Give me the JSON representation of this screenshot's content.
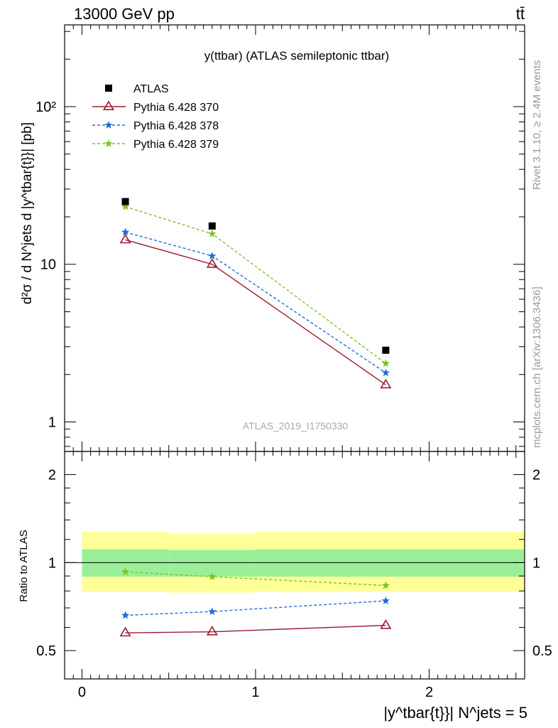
{
  "header": {
    "left": "13000 GeV pp",
    "right": "tt̄"
  },
  "side_text": {
    "rivet": "Rivet 3.1.10, ≥ 2.4M events",
    "mcplots": "mcplots.cern.ch [arXiv:1306.3436]"
  },
  "watermark": "ATLAS_2019_I1750330",
  "chart_data": {
    "type": "scatter",
    "title": "y(ttbar) (ATLAS semileptonic ttbar)",
    "ylabel_main": "d²σ / d N^jets d |y^tbar{t}}| [pb]",
    "ylabel_ratio": "Ratio to ATLAS",
    "xlabel": "|y^tbar{t}}| N^jets = 5",
    "xlim": [
      -0.1,
      2.55
    ],
    "ylim_main": [
      0.65,
      330
    ],
    "ylim_ratio": [
      0.4,
      2.4
    ],
    "y_scale_main": "log",
    "y_scale_ratio": "log",
    "x_ticks": [
      "0",
      "1",
      "2"
    ],
    "y_ticks_main": [
      "1",
      "10",
      "10²"
    ],
    "y_ticks_ratio": [
      "0.5",
      "1",
      "2"
    ],
    "x": [
      0.25,
      0.75,
      1.75
    ],
    "bins": [
      [
        -0.1,
        0.5
      ],
      [
        0.5,
        1.0
      ],
      [
        1.0,
        2.55
      ]
    ],
    "data": {
      "name": "ATLAS",
      "color": "#000000",
      "values": [
        25.0,
        17.5,
        2.85
      ]
    },
    "series": [
      {
        "name": "Pythia 6.428 370",
        "color": "#9b1b30",
        "marker": "open-triangle",
        "dash": "solid",
        "values": [
          14.3,
          10.0,
          1.72
        ],
        "ratio": [
          0.575,
          0.58,
          0.61
        ]
      },
      {
        "name": "Pythia 6.428 378",
        "color": "#1e6ed8",
        "marker": "star",
        "dash": "dashed",
        "values": [
          16.0,
          11.3,
          2.05
        ],
        "ratio": [
          0.66,
          0.68,
          0.74
        ]
      },
      {
        "name": "Pythia 6.428 379",
        "color": "#7ec31e",
        "marker": "star",
        "dash": "dashed",
        "values": [
          23.2,
          15.6,
          2.35
        ],
        "ratio": [
          0.93,
          0.895,
          0.835
        ]
      }
    ],
    "bands": {
      "inner": {
        "color": "#99f099",
        "lo": [
          0.895,
          0.895,
          0.895
        ],
        "hi": [
          1.11,
          1.105,
          1.11
        ]
      },
      "outer": {
        "color": "#ffff99",
        "lo": [
          0.795,
          0.79,
          0.795
        ],
        "hi": [
          1.275,
          1.255,
          1.275
        ]
      }
    }
  }
}
